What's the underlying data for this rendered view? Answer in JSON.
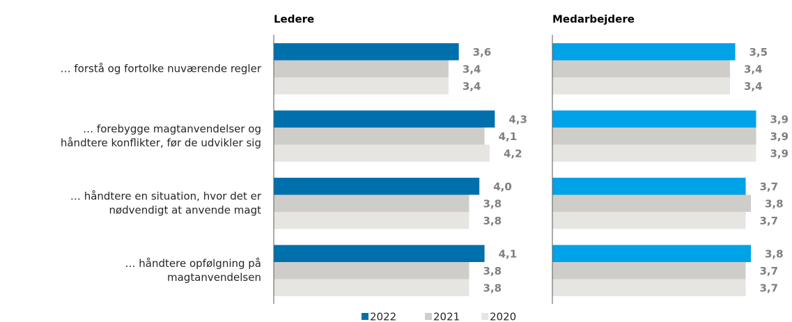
{
  "chart_data": [
    {
      "type": "bar",
      "orientation": "horizontal",
      "title": "Ledere",
      "categories": [
        [
          "… forstå og fortolke nuværende regler"
        ],
        [
          "… forebygge magtanvendelser og",
          "håndtere konflikter, før de udvikler sig"
        ],
        [
          "… håndtere en situation, hvor det er",
          "nødvendigt at anvende magt"
        ],
        [
          "… håndtere opfølgning på",
          "magtanvendelsen"
        ]
      ],
      "xlim": [
        0,
        5
      ],
      "series": [
        {
          "name": "2022",
          "color": "#0070ad",
          "values": [
            3.6,
            4.3,
            4.0,
            4.1
          ],
          "value_labels": [
            "3,6",
            "4,3",
            "4,0",
            "4,1"
          ]
        },
        {
          "name": "2021",
          "color": "#cfcdc9",
          "values": [
            3.4,
            4.1,
            3.8,
            3.8
          ],
          "value_labels": [
            "3,4",
            "4,1",
            "3,8",
            "3,8"
          ]
        },
        {
          "name": "2020",
          "color": "#e6e5e1",
          "values": [
            3.4,
            4.2,
            3.8,
            3.8
          ],
          "value_labels": [
            "3,4",
            "4,2",
            "3,8",
            "3,8"
          ]
        }
      ],
      "legend": "bottom"
    },
    {
      "type": "bar",
      "orientation": "horizontal",
      "title": "Medarbejdere",
      "xlim": [
        0,
        5
      ],
      "series": [
        {
          "color": "#00a2e8",
          "values": [
            3.5,
            3.9,
            3.7,
            3.8
          ],
          "value_labels": [
            "3,5",
            "3,9",
            "3,7",
            "3,8"
          ]
        },
        {
          "color": "#cfcdc9",
          "values": [
            3.4,
            3.9,
            3.8,
            3.7
          ],
          "value_labels": [
            "3,4",
            "3,9",
            "3,8",
            "3,7"
          ]
        },
        {
          "color": "#e6e5e1",
          "values": [
            3.4,
            3.9,
            3.7,
            3.7
          ],
          "value_labels": [
            "3,4",
            "3,9",
            "3,7",
            "3,7"
          ]
        }
      ]
    }
  ]
}
